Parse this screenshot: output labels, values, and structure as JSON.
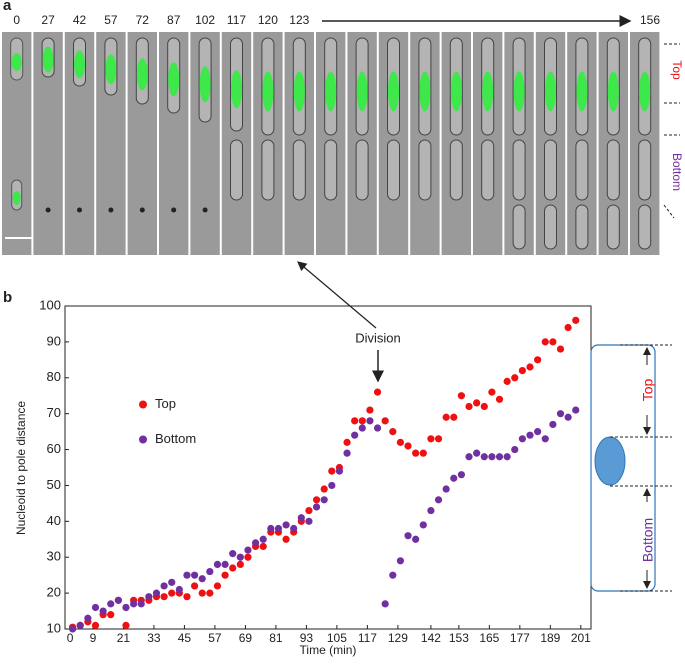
{
  "panel_a": {
    "label": "a",
    "times": [
      "0",
      "27",
      "42",
      "57",
      "72",
      "87",
      "102",
      "117",
      "120",
      "123"
    ],
    "last_time": "156",
    "side_top": "Top",
    "side_bottom": "Bottom"
  },
  "chart_data": {
    "type": "scatter",
    "panel_label": "b",
    "x_label": "Time (min)",
    "y_label": "Nucleoid to pole distance",
    "annotation": "Division",
    "xlim": [
      -2,
      205
    ],
    "ylim": [
      10,
      100
    ],
    "xticks": [
      0,
      9,
      21,
      33,
      45,
      57,
      69,
      81,
      93,
      105,
      117,
      129,
      142,
      153,
      165,
      177,
      189,
      201
    ],
    "yticks": [
      10,
      20,
      30,
      40,
      50,
      60,
      70,
      80,
      90,
      100
    ],
    "legend": "center left",
    "x": [
      1,
      4,
      7,
      10,
      13,
      16,
      19,
      22,
      25,
      28,
      31,
      34,
      37,
      40,
      43,
      46,
      49,
      52,
      55,
      58,
      61,
      64,
      67,
      70,
      73,
      76,
      79,
      82,
      85,
      88,
      91,
      94,
      97,
      100,
      103,
      106,
      109,
      112,
      115,
      118,
      121,
      124,
      127,
      130,
      133,
      136,
      139,
      142,
      145,
      148,
      151,
      154,
      157,
      160,
      163,
      166,
      169,
      172,
      175,
      178,
      181,
      184,
      187,
      190,
      193,
      196,
      199
    ],
    "series": [
      {
        "name": "Top",
        "color": "#ee1111",
        "values": [
          10.5,
          11,
          12,
          11,
          14,
          14,
          18,
          11,
          18,
          18,
          18,
          19,
          19,
          20,
          20,
          19,
          22,
          20,
          20,
          22,
          25,
          27,
          28,
          30,
          33,
          33,
          37,
          37,
          35,
          37,
          40,
          43,
          46,
          49,
          54,
          55,
          62,
          68,
          68,
          71,
          76,
          68,
          65,
          62,
          61,
          59,
          59,
          63,
          63,
          69,
          69,
          75,
          72,
          73,
          72,
          76,
          74,
          79,
          80,
          82,
          83,
          85,
          90,
          90,
          88,
          94,
          96
        ]
      },
      {
        "name": "Bottom",
        "color": "#7030a0",
        "values": [
          10,
          11,
          13,
          16,
          15,
          17,
          18,
          16,
          17,
          17,
          19,
          20,
          22,
          23,
          21,
          25,
          25,
          24,
          26,
          28,
          28,
          31,
          30,
          32,
          34,
          35,
          38,
          38,
          39,
          38,
          41,
          40,
          44,
          46,
          50,
          54,
          59,
          64,
          66,
          68,
          66,
          17,
          25,
          29,
          36,
          35,
          39,
          43,
          46,
          49,
          52,
          53,
          58,
          59,
          58,
          58,
          58,
          58,
          60,
          63,
          64,
          65,
          63,
          67,
          70,
          69,
          71
        ]
      }
    ]
  },
  "diagram": {
    "top": "Top",
    "bottom": "Bottom"
  }
}
